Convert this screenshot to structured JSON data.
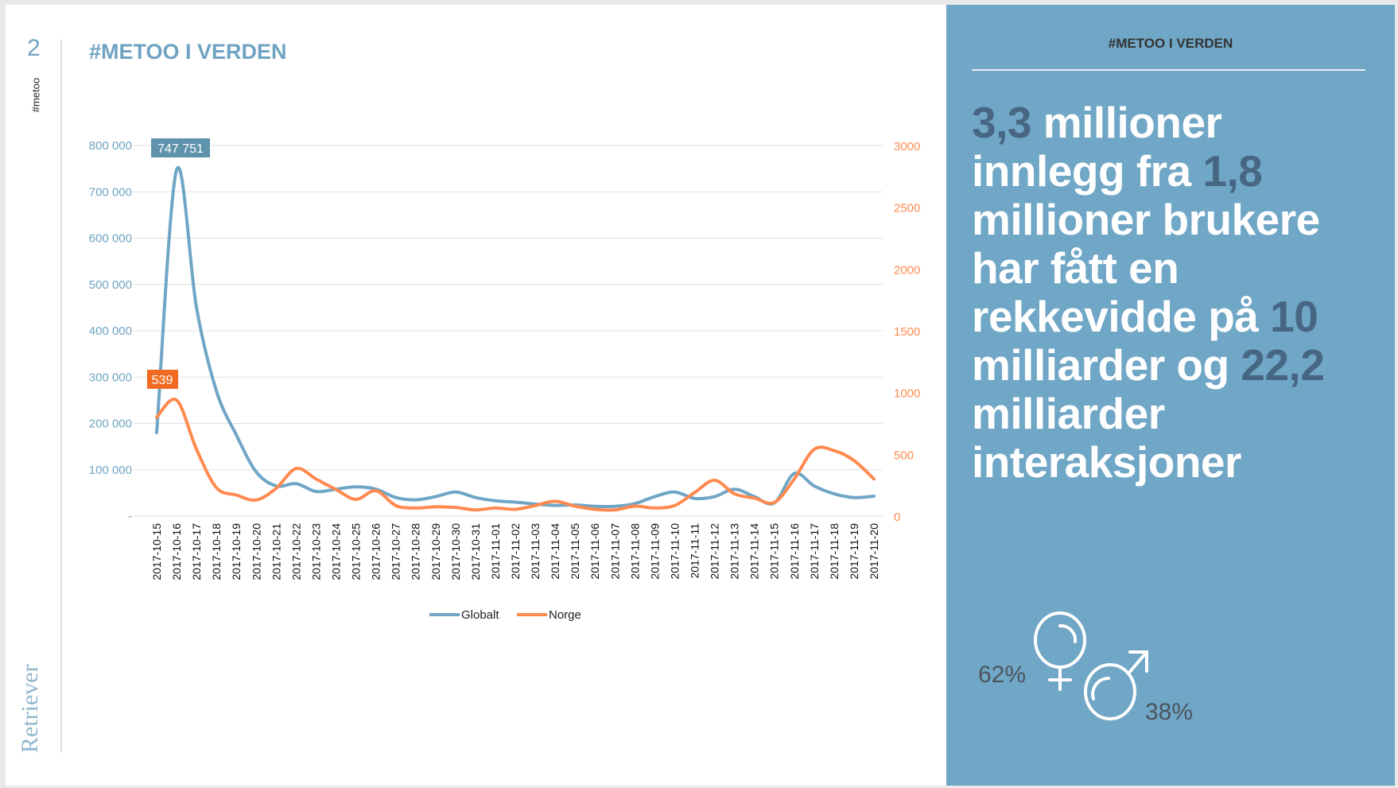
{
  "slide": {
    "number": "2",
    "side_tag": "#metoo",
    "title": "#METOO I VERDEN",
    "logo_text": "Retriever"
  },
  "panel": {
    "header": "#METOO I VERDEN",
    "statement": [
      {
        "text": "3,3",
        "highlight": true
      },
      {
        "text": " millioner innlegg fra ",
        "highlight": false
      },
      {
        "text": "1,8",
        "highlight": true
      },
      {
        "text": " millioner brukere har fått en rekkevidde på ",
        "highlight": false
      },
      {
        "text": "10",
        "highlight": true
      },
      {
        "text": " milliarder og ",
        "highlight": false
      },
      {
        "text": "22,2",
        "highlight": true
      },
      {
        "text": " milliarder interaksjoner",
        "highlight": false
      }
    ],
    "female_pct": "62%",
    "male_pct": "38%",
    "female_icon": "female-symbol-icon",
    "male_icon": "male-symbol-icon"
  },
  "chart_data": {
    "type": "line",
    "title": "#METOO I VERDEN",
    "x": [
      "2017-10-15",
      "2017-10-16",
      "2017-10-17",
      "2017-10-18",
      "2017-10-19",
      "2017-10-20",
      "2017-10-21",
      "2017-10-22",
      "2017-10-23",
      "2017-10-24",
      "2017-10-25",
      "2017-10-26",
      "2017-10-27",
      "2017-10-28",
      "2017-10-29",
      "2017-10-30",
      "2017-10-31",
      "2017-11-01",
      "2017-11-02",
      "2017-11-03",
      "2017-11-04",
      "2017-11-05",
      "2017-11-06",
      "2017-11-07",
      "2017-11-08",
      "2017-11-09",
      "2017-11-10",
      "2017-11-11",
      "2017-11-12",
      "2017-11-13",
      "2017-11-14",
      "2017-11-15",
      "2017-11-16",
      "2017-11-17",
      "2017-11-18",
      "2017-11-19",
      "2017-11-20"
    ],
    "series": [
      {
        "name": "Globalt",
        "axis": "left",
        "color": "#6fa6c6",
        "values": [
          180000,
          747751,
          450000,
          270000,
          175000,
          95000,
          65000,
          70000,
          53000,
          58000,
          63000,
          58000,
          40000,
          35000,
          42000,
          52000,
          40000,
          33000,
          30000,
          26000,
          23000,
          24000,
          21000,
          21000,
          27000,
          42000,
          52000,
          38000,
          42000,
          58000,
          42000,
          28000,
          92000,
          65000,
          48000,
          40000,
          43000
        ]
      },
      {
        "name": "Norge",
        "axis": "right",
        "color": "#ff8a50",
        "values": [
          800,
          939,
          540,
          230,
          170,
          130,
          225,
          385,
          300,
          215,
          135,
          205,
          85,
          65,
          75,
          70,
          50,
          65,
          55,
          85,
          120,
          80,
          55,
          50,
          80,
          65,
          85,
          190,
          290,
          180,
          145,
          110,
          300,
          540,
          530,
          450,
          300
        ]
      }
    ],
    "left_axis": {
      "ylim": [
        0,
        800000
      ],
      "ticks": [
        "-",
        "100 000",
        "200 000",
        "300 000",
        "400 000",
        "500 000",
        "600 000",
        "700 000",
        "800 000"
      ],
      "color": "#6fa3c2"
    },
    "right_axis": {
      "ylim": [
        0,
        3000
      ],
      "ticks": [
        "0",
        "500",
        "1000",
        "1500",
        "2000",
        "2500",
        "3000"
      ],
      "color": "#ff8a50"
    },
    "annotations": [
      {
        "series": "Globalt",
        "text": "747 751",
        "color": "#5e93ab"
      },
      {
        "series": "Norge",
        "text": "539",
        "color": "#f26a21"
      }
    ],
    "grid": true,
    "legend": "bottom"
  }
}
